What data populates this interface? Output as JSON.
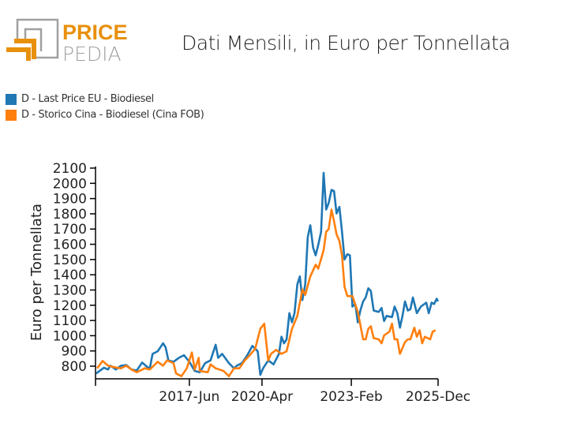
{
  "logo": {
    "text_top": "PRICE",
    "text_bottom": "PEDIA",
    "colors": {
      "orange": "#E8900C",
      "gray": "#A0A0A0"
    }
  },
  "chart_data": {
    "type": "line",
    "title": "Dati Mensili, in Euro per Tonnellata",
    "xlabel": "",
    "ylabel": "Euro per Tonnellata",
    "xlim": [
      2013.8,
      2025.92
    ],
    "ylim": [
      717,
      2100
    ],
    "grid": false,
    "legend_position": "top-left",
    "y_ticks": [
      800,
      900,
      1000,
      1100,
      1200,
      1300,
      1400,
      1500,
      1600,
      1700,
      1800,
      1900,
      2000,
      2100
    ],
    "x_ticks": [
      {
        "value": 2013.8,
        "label": ""
      },
      {
        "value": 2017.12,
        "label": "2017-Jun"
      },
      {
        "value": 2019.69,
        "label": "2020-Apr"
      },
      {
        "value": 2022.85,
        "label": "2023-Feb"
      },
      {
        "value": 2025.92,
        "label": "2025-Dec"
      }
    ],
    "series": [
      {
        "name": "D - Last Price EU - Biodiesel",
        "color": "#1F77B4",
        "x": [
          2013.82,
          2014.1,
          2014.24,
          2014.33,
          2014.52,
          2014.7,
          2014.89,
          2015.07,
          2015.26,
          2015.45,
          2015.63,
          2015.72,
          2015.82,
          2016.0,
          2016.19,
          2016.28,
          2016.38,
          2016.56,
          2016.75,
          2016.93,
          2017.12,
          2017.31,
          2017.49,
          2017.68,
          2017.87,
          2018.05,
          2018.14,
          2018.28,
          2018.52,
          2018.7,
          2018.8,
          2018.98,
          2019.17,
          2019.35,
          2019.54,
          2019.63,
          2019.73,
          2019.91,
          2020.1,
          2020.29,
          2020.38,
          2020.47,
          2020.56,
          2020.66,
          2020.75,
          2020.84,
          2020.94,
          2021.03,
          2021.12,
          2021.22,
          2021.31,
          2021.4,
          2021.5,
          2021.59,
          2021.68,
          2021.78,
          2021.87,
          2021.96,
          2022.05,
          2022.15,
          2022.24,
          2022.33,
          2022.43,
          2022.52,
          2022.61,
          2022.71,
          2022.8,
          2022.89,
          2022.99,
          2023.08,
          2023.17,
          2023.27,
          2023.36,
          2023.45,
          2023.54,
          2023.64,
          2023.82,
          2023.92,
          2024.01,
          2024.1,
          2024.29,
          2024.38,
          2024.48,
          2024.57,
          2024.66,
          2024.75,
          2024.85,
          2024.94,
          2025.03,
          2025.17,
          2025.31,
          2025.5,
          2025.59,
          2025.69,
          2025.78,
          2025.87,
          2025.92
        ],
        "y": [
          752,
          790,
          778,
          803,
          778,
          803,
          808,
          778,
          772,
          824,
          795,
          786,
          881,
          898,
          950,
          924,
          838,
          829,
          855,
          872,
          829,
          769,
          760,
          820,
          838,
          941,
          855,
          881,
          820,
          786,
          803,
          820,
          872,
          933,
          898,
          743,
          786,
          838,
          812,
          881,
          993,
          950,
          976,
          1148,
          1088,
          1148,
          1337,
          1389,
          1234,
          1337,
          1647,
          1725,
          1578,
          1527,
          1596,
          1682,
          2069,
          1828,
          1871,
          1957,
          1949,
          1802,
          1845,
          1682,
          1500,
          1535,
          1527,
          1191,
          1208,
          1088,
          1165,
          1225,
          1251,
          1311,
          1294,
          1165,
          1156,
          1182,
          1096,
          1130,
          1122,
          1191,
          1148,
          1053,
          1130,
          1225,
          1165,
          1174,
          1251,
          1148,
          1191,
          1217,
          1148,
          1217,
          1208,
          1243,
          1225
        ]
      },
      {
        "name": "D - Storico Cina - Biodiesel (Cina FOB)",
        "color": "#FF7F0E",
        "x": [
          2013.86,
          2014.05,
          2014.24,
          2014.52,
          2014.7,
          2014.89,
          2015.07,
          2015.26,
          2015.54,
          2015.72,
          2016.0,
          2016.19,
          2016.33,
          2016.56,
          2016.65,
          2016.84,
          2017.03,
          2017.21,
          2017.31,
          2017.45,
          2017.49,
          2017.77,
          2017.87,
          2018.05,
          2018.33,
          2018.52,
          2018.7,
          2018.89,
          2019.08,
          2019.26,
          2019.45,
          2019.63,
          2019.77,
          2019.91,
          2020.01,
          2020.19,
          2020.38,
          2020.56,
          2020.75,
          2020.94,
          2021.12,
          2021.22,
          2021.4,
          2021.59,
          2021.68,
          2021.87,
          2021.96,
          2022.05,
          2022.15,
          2022.24,
          2022.33,
          2022.43,
          2022.52,
          2022.61,
          2022.71,
          2022.89,
          2023.08,
          2023.27,
          2023.36,
          2023.45,
          2023.54,
          2023.64,
          2023.82,
          2023.92,
          2024.01,
          2024.2,
          2024.29,
          2024.38,
          2024.48,
          2024.57,
          2024.75,
          2024.85,
          2024.94,
          2025.08,
          2025.17,
          2025.27,
          2025.36,
          2025.45,
          2025.64,
          2025.73,
          2025.83
        ],
        "y": [
          786,
          834,
          803,
          791,
          786,
          803,
          778,
          760,
          786,
          778,
          829,
          803,
          838,
          820,
          752,
          734,
          786,
          890,
          778,
          855,
          769,
          760,
          812,
          786,
          769,
          734,
          786,
          786,
          838,
          872,
          915,
          1045,
          1079,
          838,
          881,
          907,
          881,
          898,
          1045,
          1130,
          1303,
          1268,
          1389,
          1466,
          1440,
          1561,
          1682,
          1699,
          1828,
          1751,
          1665,
          1622,
          1527,
          1320,
          1260,
          1260,
          1156,
          976,
          976,
          1045,
          1062,
          984,
          976,
          950,
          1002,
          1027,
          1079,
          976,
          976,
          881,
          958,
          976,
          976,
          1053,
          993,
          1036,
          950,
          993,
          976,
          1027,
          1036
        ]
      }
    ]
  }
}
